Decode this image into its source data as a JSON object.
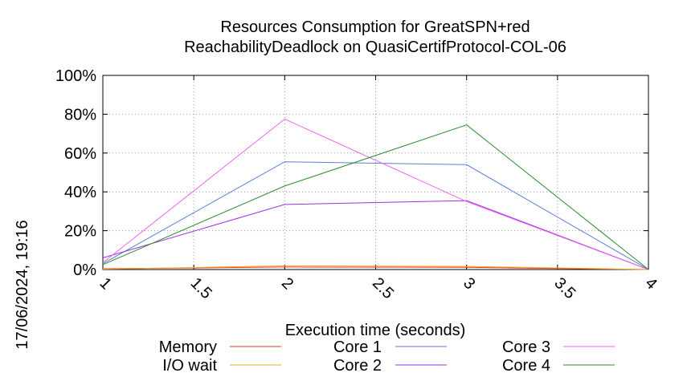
{
  "chart_data": {
    "type": "line",
    "title": [
      "Resources Consumption for GreatSPN+red",
      "ReachabilityDeadlock on QuasiCertifProtocol-COL-06"
    ],
    "xlabel": "Execution time (seconds)",
    "ylabel": "",
    "xlim": [
      1,
      4
    ],
    "ylim": [
      0,
      100
    ],
    "x_ticks": [
      1,
      1.5,
      2,
      2.5,
      3,
      3.5,
      4
    ],
    "x_tick_labels": [
      "1",
      "1.5",
      "2",
      "2.5",
      "3",
      "3.5",
      "4"
    ],
    "y_ticks": [
      0,
      20,
      40,
      60,
      80,
      100
    ],
    "y_tick_labels": [
      "0%",
      "20%",
      "40%",
      "60%",
      "80%",
      "100%"
    ],
    "grid": true,
    "legend_position": "bottom",
    "timestamp": "17/06/2024, 19:16",
    "series": [
      {
        "name": "Memory",
        "color": "#e8352a",
        "x": [
          1,
          2,
          3,
          4
        ],
        "values": [
          0.4,
          1.3,
          1.1,
          0
        ]
      },
      {
        "name": "I/O wait",
        "color": "#f5a623",
        "x": [
          1,
          2,
          3,
          4
        ],
        "values": [
          0.2,
          1.9,
          1.6,
          0
        ]
      },
      {
        "name": "Core 1",
        "color": "#5b7fd6",
        "x": [
          1,
          2,
          3,
          4
        ],
        "values": [
          3,
          55.5,
          54,
          0
        ]
      },
      {
        "name": "Core 2",
        "color": "#9b30e0",
        "x": [
          1,
          2,
          3,
          4
        ],
        "values": [
          6,
          33.5,
          35.5,
          0
        ]
      },
      {
        "name": "Core 3",
        "color": "#f060f0",
        "x": [
          1,
          2,
          3,
          4
        ],
        "values": [
          3.5,
          77.5,
          35,
          0
        ]
      },
      {
        "name": "Core 4",
        "color": "#2e8b2e",
        "x": [
          1,
          2,
          3,
          4
        ],
        "values": [
          2.5,
          43,
          74.5,
          0
        ]
      }
    ]
  }
}
